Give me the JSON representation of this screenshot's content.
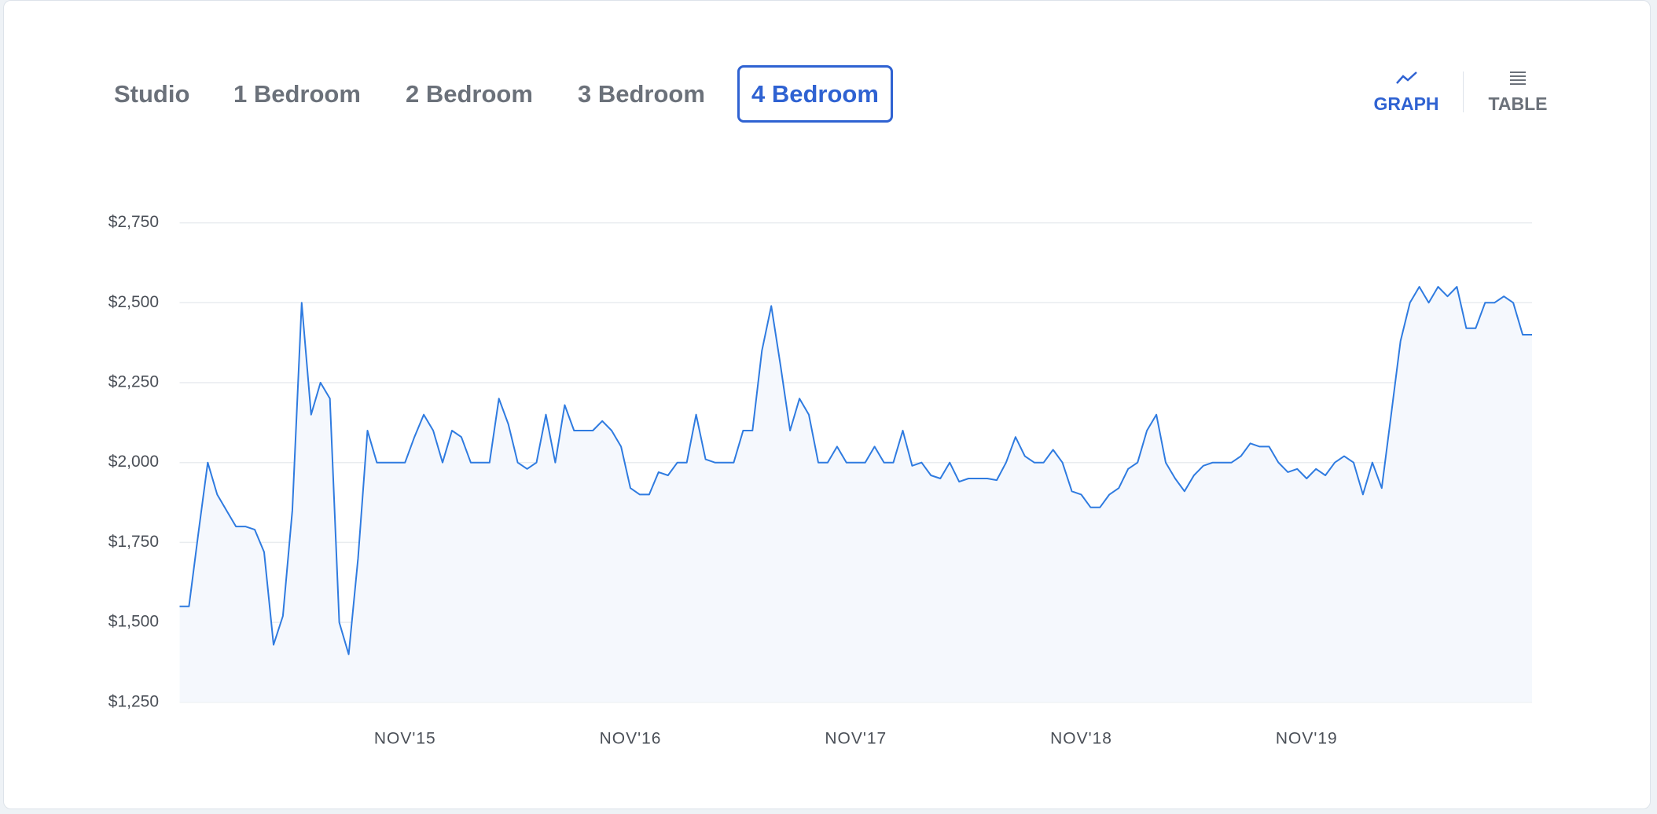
{
  "tabs": [
    "Studio",
    "1 Bedroom",
    "2 Bedroom",
    "3 Bedroom",
    "4 Bedroom"
  ],
  "view_toggle": [
    "GRAPH",
    "TABLE"
  ],
  "chart_data": {
    "type": "line",
    "color": "#2f7be0",
    "fill": "#f5f8fd",
    "grid": true,
    "ylim": [
      1250,
      2750
    ],
    "yticks": [
      {
        "value": 1250,
        "label": "$1,250"
      },
      {
        "value": 1500,
        "label": "$1,500"
      },
      {
        "value": 1750,
        "label": "$1,750"
      },
      {
        "value": 2000,
        "label": "$2,000"
      },
      {
        "value": 2250,
        "label": "$2,250"
      },
      {
        "value": 2500,
        "label": "$2,500"
      },
      {
        "value": 2750,
        "label": "$2,750"
      }
    ],
    "categories": [
      null,
      null,
      null,
      null,
      null,
      null,
      null,
      null,
      null,
      null,
      null,
      null,
      null,
      null,
      null,
      null,
      null,
      null,
      null,
      null,
      null,
      null,
      null,
      null,
      "NOV'15",
      null,
      null,
      null,
      null,
      null,
      null,
      null,
      null,
      null,
      null,
      null,
      null,
      null,
      null,
      null,
      null,
      null,
      null,
      null,
      null,
      null,
      null,
      null,
      "NOV'16",
      null,
      null,
      null,
      null,
      null,
      null,
      null,
      null,
      null,
      null,
      null,
      null,
      null,
      null,
      null,
      null,
      null,
      null,
      null,
      null,
      null,
      null,
      null,
      "NOV'17",
      null,
      null,
      null,
      null,
      null,
      null,
      null,
      null,
      null,
      null,
      null,
      null,
      null,
      null,
      null,
      null,
      null,
      null,
      null,
      null,
      null,
      null,
      null,
      "NOV'18",
      null,
      null,
      null,
      null,
      null,
      null,
      null,
      null,
      null,
      null,
      null,
      null,
      null,
      null,
      null,
      null,
      null,
      null,
      null,
      null,
      null,
      null,
      null,
      "NOV'19",
      null,
      null,
      null,
      null,
      null,
      null,
      null,
      null,
      null,
      null,
      null,
      null,
      null,
      null,
      null,
      null,
      null,
      null,
      null,
      null,
      null,
      null,
      null,
      null
    ],
    "values": [
      1550,
      1550,
      1780,
      2000,
      1900,
      1850,
      1800,
      1800,
      1790,
      1720,
      1430,
      1520,
      1850,
      2500,
      2150,
      2250,
      2200,
      1500,
      1400,
      1700,
      2100,
      2000,
      2000,
      2000,
      2000,
      2080,
      2150,
      2100,
      2000,
      2100,
      2080,
      2000,
      2000,
      2000,
      2200,
      2120,
      2000,
      1980,
      2000,
      2150,
      2000,
      2180,
      2100,
      2100,
      2100,
      2130,
      2100,
      2050,
      1920,
      1900,
      1900,
      1970,
      1960,
      2000,
      2000,
      2150,
      2010,
      2000,
      2000,
      2000,
      2100,
      2100,
      2350,
      2490,
      2300,
      2100,
      2200,
      2150,
      2000,
      2000,
      2050,
      2000,
      2000,
      2000,
      2050,
      2000,
      2000,
      2100,
      1990,
      2000,
      1960,
      1950,
      2000,
      1940,
      1950,
      1950,
      1950,
      1945,
      2000,
      2080,
      2020,
      2000,
      2000,
      2040,
      2000,
      1910,
      1900,
      1860,
      1860,
      1900,
      1920,
      1980,
      2000,
      2100,
      2150,
      2000,
      1950,
      1910,
      1960,
      1990,
      2000,
      2000,
      2000,
      2020,
      2060,
      2050,
      2050,
      2000,
      1970,
      1980,
      1950,
      1980,
      1960,
      2000,
      2020,
      2000,
      1900,
      2000,
      1920,
      2150,
      2380,
      2500,
      2550,
      2500,
      2550,
      2520,
      2550,
      2420,
      2420,
      2500,
      2500,
      2520,
      2500,
      2400,
      2400
    ]
  }
}
